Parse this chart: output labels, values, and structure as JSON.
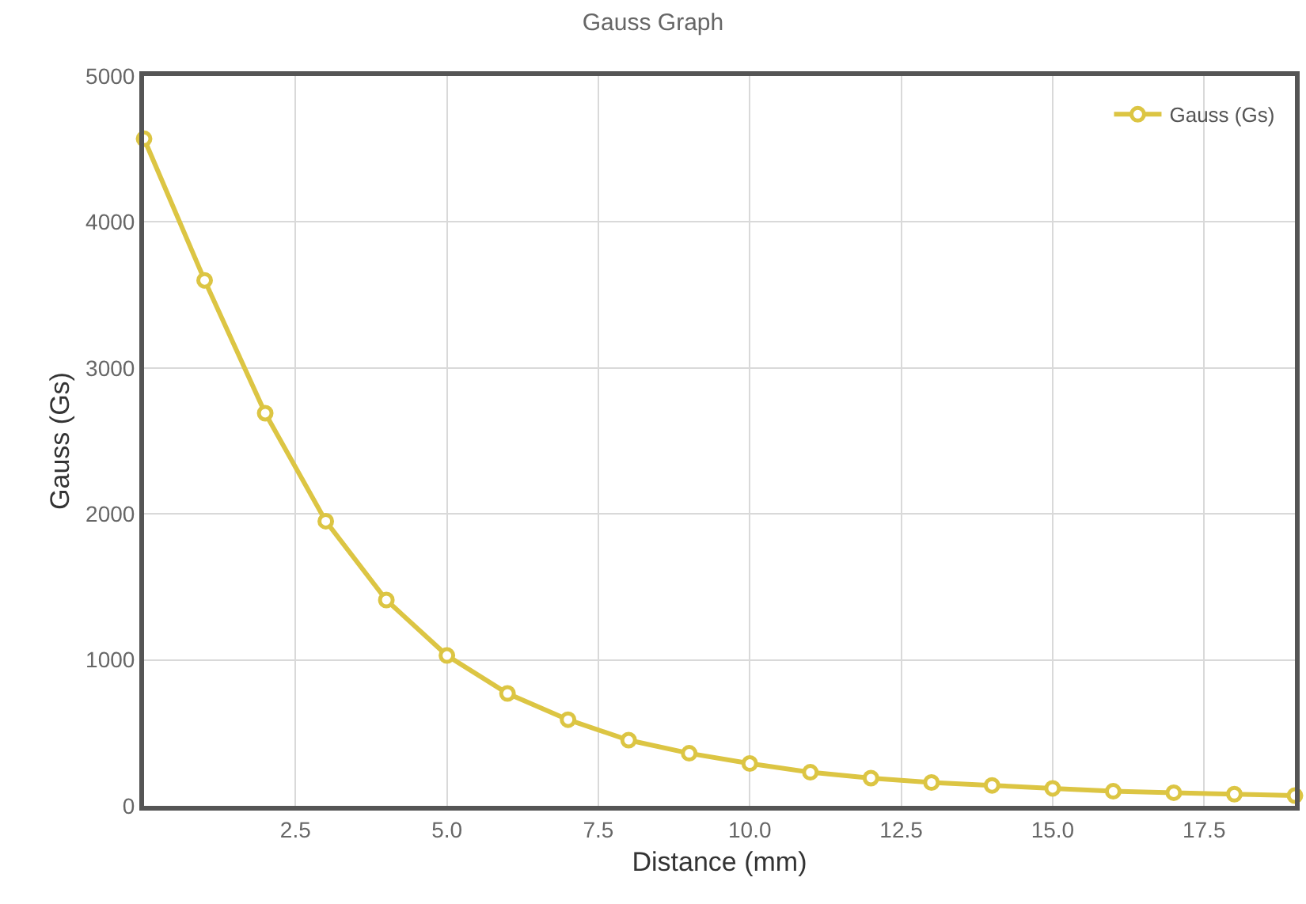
{
  "chart_data": {
    "type": "line",
    "title": "Gauss Graph",
    "xlabel": "Distance (mm)",
    "ylabel": "Gauss (Gs)",
    "x": [
      0,
      1,
      2,
      3,
      4,
      5,
      6,
      7,
      8,
      9,
      10,
      11,
      12,
      13,
      14,
      15,
      16,
      17,
      18,
      19
    ],
    "series": [
      {
        "name": "Gauss (Gs)",
        "color": "#dcc543",
        "values": [
          4570,
          3600,
          2690,
          1950,
          1410,
          1030,
          770,
          590,
          450,
          360,
          290,
          230,
          190,
          160,
          140,
          120,
          100,
          90,
          80,
          70
        ]
      }
    ],
    "xlim": [
      0,
      19
    ],
    "xticks": [
      2.5,
      {
        "value": 5,
        "label": "5.0"
      },
      7.5,
      {
        "value": 10,
        "label": "10.0"
      },
      12.5,
      {
        "value": 15,
        "label": "15.0"
      },
      17.5
    ],
    "ylim": [
      0,
      5000
    ],
    "yticks": [
      0,
      1000,
      2000,
      3000,
      4000,
      5000
    ],
    "grid": true,
    "legend": "top right",
    "marker": "circle",
    "line_style": "solid"
  }
}
